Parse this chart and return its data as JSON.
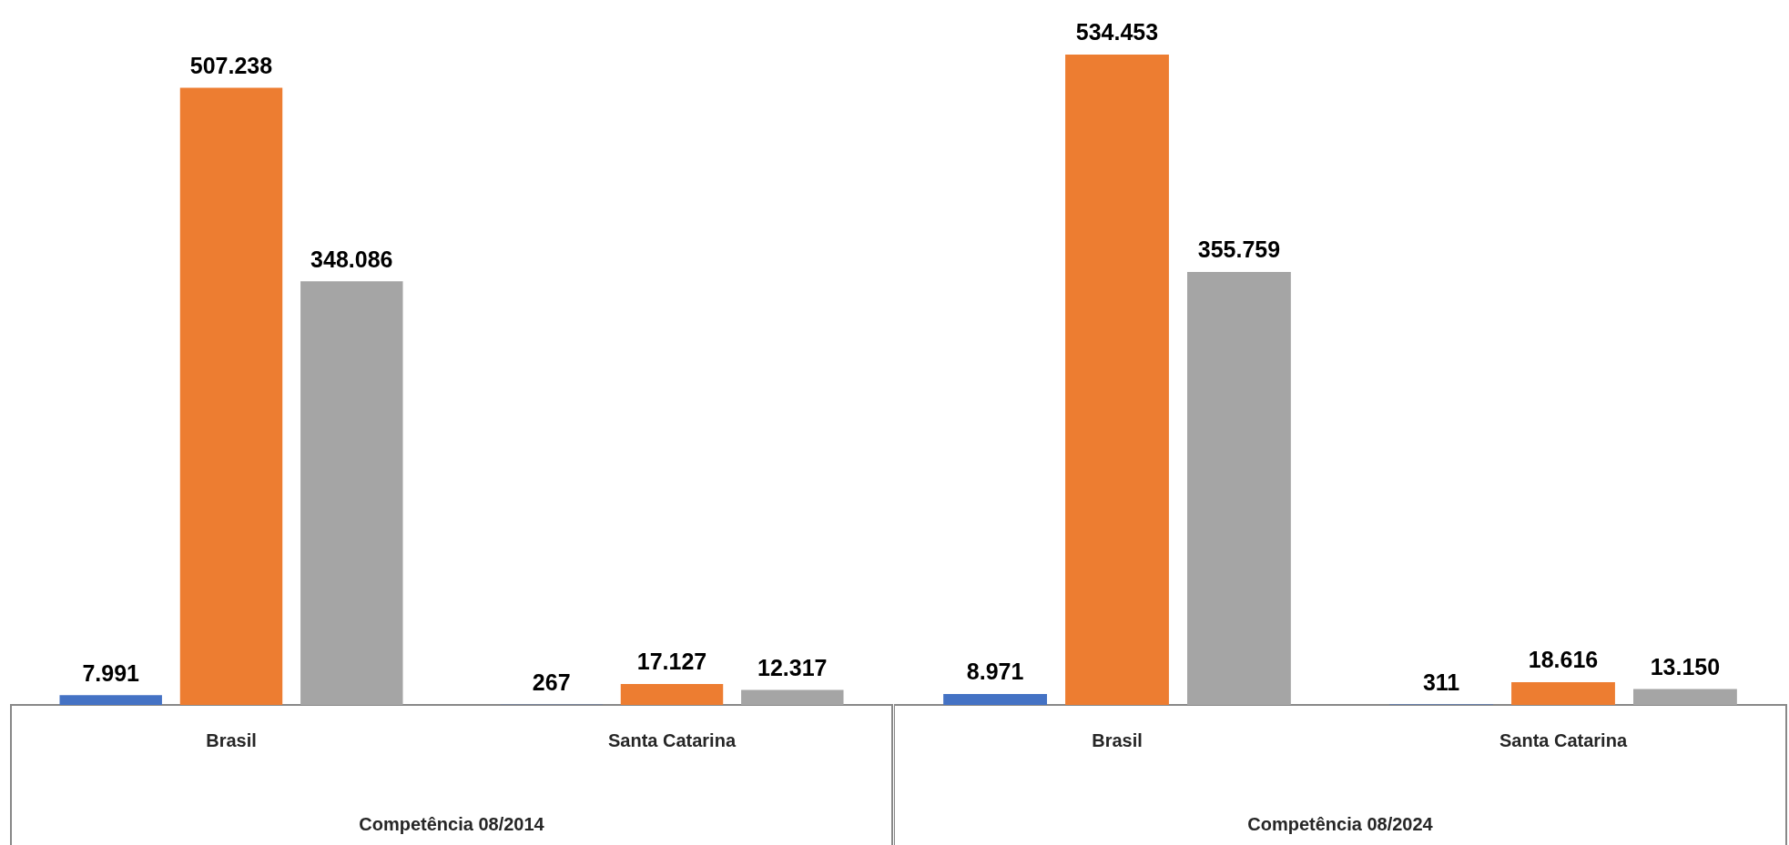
{
  "chart_data": [
    {
      "type": "bar",
      "xlabel": "Competência 08/2014",
      "categories": [
        "Brasil",
        "Santa Catarina"
      ],
      "series": [
        {
          "color": "#4472c4",
          "values": [
            7991,
            267
          ],
          "value_labels": [
            "7.991",
            "267"
          ]
        },
        {
          "color": "#ed7d31",
          "values": [
            507238,
            17127
          ],
          "value_labels": [
            "507.238",
            "17.127"
          ]
        },
        {
          "color": "#a5a5a5",
          "values": [
            348086,
            12317
          ],
          "value_labels": [
            "348.086",
            "12.317"
          ]
        }
      ],
      "tick_labels": "x",
      "grid": false,
      "legend": false
    },
    {
      "type": "bar",
      "xlabel": "Competência 08/2024",
      "categories": [
        "Brasil",
        "Santa Catarina"
      ],
      "series": [
        {
          "color": "#4472c4",
          "values": [
            8971,
            311
          ],
          "value_labels": [
            "8.971",
            "311"
          ]
        },
        {
          "color": "#ed7d31",
          "values": [
            534453,
            18616
          ],
          "value_labels": [
            "534.453",
            "18.616"
          ]
        },
        {
          "color": "#a5a5a5",
          "values": [
            355759,
            13150
          ],
          "value_labels": [
            "355.759",
            "13.150"
          ]
        }
      ],
      "tick_labels": "x",
      "grid": false,
      "legend": false
    }
  ]
}
